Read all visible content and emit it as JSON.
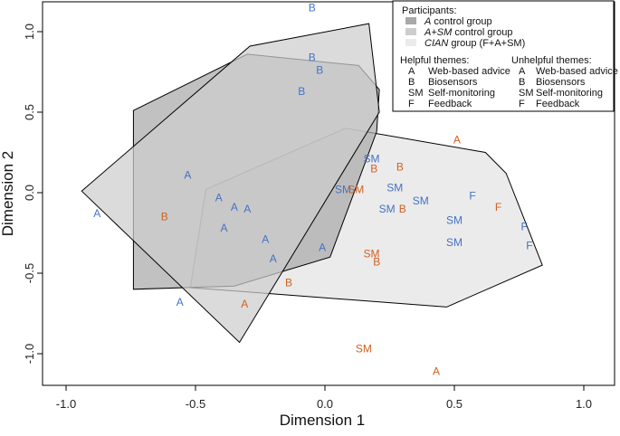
{
  "chart_data": {
    "type": "scatter",
    "xlabel": "Dimension 1",
    "ylabel": "Dimension 2",
    "xlim": [
      -1.1,
      1.1
    ],
    "ylim": [
      -1.2,
      1.2
    ],
    "xticks": [
      "-1.0",
      "-0.5",
      "0.0",
      "0.5",
      "1.0"
    ],
    "yticks": [
      "-1.0",
      "-0.5",
      "0.0",
      "0.5",
      "1.0"
    ],
    "grid": false,
    "legend_position": "top-right",
    "colors": {
      "helpful": "#4472c4",
      "unhelpful": "#d2601f"
    },
    "legend": {
      "participants_title": "Participants:",
      "groups": [
        {
          "code": "A",
          "rest": " control group",
          "fill": "#a9a9a9"
        },
        {
          "code": "A+SM",
          "rest": " control group",
          "fill": "#cdcdcd"
        },
        {
          "code": "CIAN",
          "rest": " group (F+A+SM)",
          "fill": "#ebebeb"
        }
      ],
      "helpful_title": "Helpful themes:",
      "unhelpful_title": "Unhelpful themes:",
      "themes": [
        {
          "code": "A",
          "label": "Web-based advice"
        },
        {
          "code": "B",
          "label": "Biosensors"
        },
        {
          "code": "SM",
          "label": "Self-monitoring"
        },
        {
          "code": "F",
          "label": "Feedback"
        }
      ]
    },
    "polygons": [
      {
        "name": "CIAN group (F+A+SM)",
        "fill": "#ebebeb",
        "points": [
          [
            -0.46,
            0.02
          ],
          [
            0.08,
            0.4
          ],
          [
            0.62,
            0.25
          ],
          [
            0.7,
            0.12
          ],
          [
            0.84,
            -0.45
          ],
          [
            0.47,
            -0.71
          ],
          [
            -0.52,
            -0.59
          ]
        ]
      },
      {
        "name": "A control group",
        "fill": "#a9a9a9",
        "points": [
          [
            -0.74,
            -0.6
          ],
          [
            -0.74,
            0.51
          ],
          [
            -0.3,
            0.86
          ],
          [
            0.13,
            0.79
          ],
          [
            0.21,
            0.64
          ],
          [
            0.2,
            0.38
          ],
          [
            0.02,
            -0.4
          ],
          [
            -0.35,
            -0.58
          ]
        ]
      },
      {
        "name": "A+SM control group",
        "fill": "#cdcdcd",
        "points": [
          [
            -0.94,
            0.01
          ],
          [
            -0.29,
            0.91
          ],
          [
            0.17,
            1.05
          ],
          [
            0.21,
            0.5
          ],
          [
            -0.33,
            -0.93
          ]
        ]
      }
    ],
    "series": [
      {
        "name": "Helpful - Web-based advice",
        "label": "A",
        "color": "#4472c4",
        "points": [
          [
            -0.88,
            -0.13
          ],
          [
            -0.53,
            0.11
          ],
          [
            -0.41,
            -0.03
          ],
          [
            -0.35,
            -0.09
          ],
          [
            -0.3,
            -0.1
          ],
          [
            -0.39,
            -0.22
          ],
          [
            -0.23,
            -0.29
          ],
          [
            -0.2,
            -0.41
          ],
          [
            -0.01,
            -0.34
          ],
          [
            -0.56,
            -0.68
          ]
        ]
      },
      {
        "name": "Helpful - Biosensors",
        "label": "B",
        "color": "#4472c4",
        "points": [
          [
            -0.05,
            1.15
          ],
          [
            -0.05,
            0.84
          ],
          [
            -0.02,
            0.76
          ],
          [
            -0.09,
            0.63
          ]
        ]
      },
      {
        "name": "Helpful - Self-monitoring",
        "label": "SM",
        "color": "#4472c4",
        "points": [
          [
            0.18,
            0.21
          ],
          [
            0.07,
            0.02
          ],
          [
            0.27,
            0.03
          ],
          [
            0.37,
            -0.05
          ],
          [
            0.24,
            -0.1
          ],
          [
            0.5,
            -0.17
          ],
          [
            0.5,
            -0.31
          ]
        ]
      },
      {
        "name": "Helpful - Feedback",
        "label": "F",
        "color": "#4472c4",
        "points": [
          [
            0.57,
            -0.02
          ],
          [
            0.77,
            -0.21
          ],
          [
            0.79,
            -0.33
          ]
        ]
      },
      {
        "name": "Unhelpful - Web-based advice",
        "label": "A",
        "color": "#d2601f",
        "points": [
          [
            0.51,
            0.33
          ],
          [
            -0.31,
            -0.69
          ],
          [
            0.43,
            -1.11
          ]
        ]
      },
      {
        "name": "Unhelpful - Biosensors",
        "label": "B",
        "color": "#d2601f",
        "points": [
          [
            -0.62,
            -0.15
          ],
          [
            0.19,
            0.15
          ],
          [
            0.29,
            0.16
          ],
          [
            0.3,
            -0.1
          ],
          [
            0.2,
            -0.43
          ],
          [
            -0.14,
            -0.56
          ]
        ]
      },
      {
        "name": "Unhelpful - Self-monitoring",
        "label": "SM",
        "color": "#d2601f",
        "points": [
          [
            0.12,
            0.02
          ],
          [
            0.18,
            -0.38
          ],
          [
            0.15,
            -0.97
          ]
        ]
      },
      {
        "name": "Unhelpful - Feedback",
        "label": "F",
        "color": "#d2601f",
        "points": [
          [
            0.67,
            -0.09
          ]
        ]
      }
    ]
  }
}
